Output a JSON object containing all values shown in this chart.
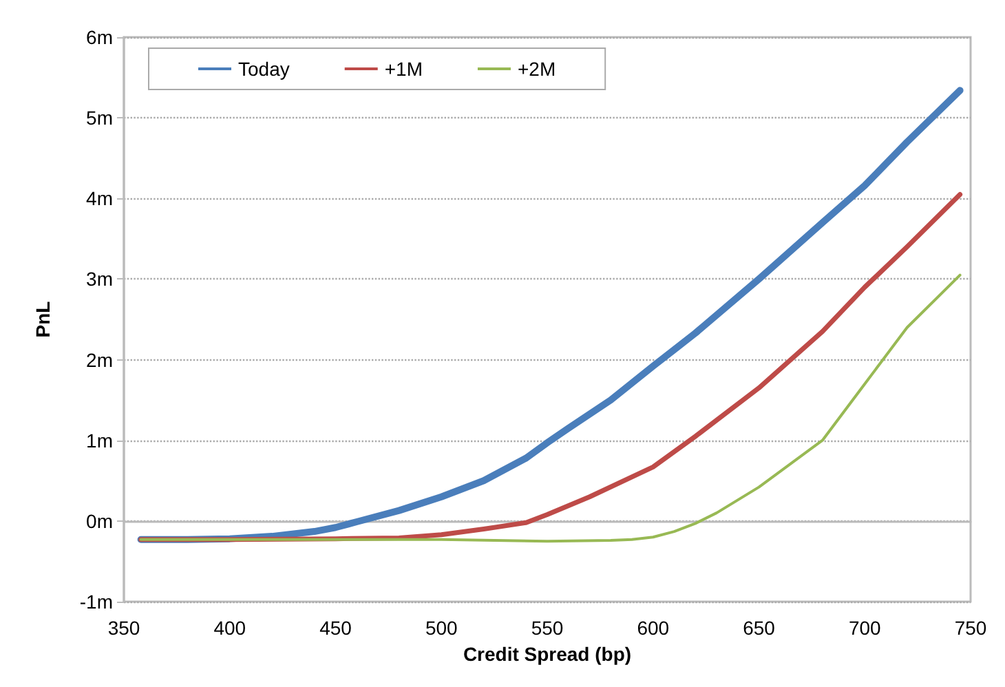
{
  "chart_data": {
    "type": "line",
    "xlabel": "Credit Spread (bp)",
    "ylabel": "PnL",
    "series": [
      {
        "name": "Today",
        "color": "#4a7ebb",
        "x": [
          358,
          380,
          400,
          420,
          440,
          450,
          460,
          480,
          500,
          520,
          540,
          550,
          560,
          580,
          600,
          620,
          650,
          680,
          700,
          720,
          745
        ],
        "values": [
          -0.23,
          -0.23,
          -0.22,
          -0.19,
          -0.13,
          -0.08,
          -0.01,
          0.13,
          0.3,
          0.5,
          0.78,
          0.97,
          1.15,
          1.5,
          1.92,
          2.33,
          3.0,
          3.7,
          4.16,
          4.7,
          5.34
        ]
      },
      {
        "name": "+1M",
        "color": "#be4b48",
        "x": [
          358,
          400,
          450,
          480,
          500,
          520,
          540,
          550,
          570,
          600,
          620,
          650,
          680,
          700,
          720,
          745
        ],
        "values": [
          -0.23,
          -0.23,
          -0.22,
          -0.21,
          -0.17,
          -0.1,
          -0.02,
          0.08,
          0.3,
          0.67,
          1.05,
          1.65,
          2.35,
          2.9,
          3.4,
          4.05
        ]
      },
      {
        "name": "+2M",
        "color": "#98b954",
        "x": [
          358,
          450,
          500,
          550,
          580,
          590,
          600,
          610,
          620,
          630,
          650,
          680,
          700,
          720,
          745
        ],
        "values": [
          -0.23,
          -0.23,
          -0.23,
          -0.25,
          -0.24,
          -0.23,
          -0.2,
          -0.13,
          -0.03,
          0.1,
          0.42,
          1.0,
          1.7,
          2.4,
          3.05
        ]
      }
    ],
    "xlim": [
      350,
      750
    ],
    "xticks": [
      350,
      400,
      450,
      500,
      550,
      600,
      650,
      700,
      750
    ],
    "ylim": [
      -1,
      6
    ],
    "yticks": [
      {
        "value": -1,
        "label": "-1m"
      },
      {
        "value": 0,
        "label": "0m"
      },
      {
        "value": 1,
        "label": "1m"
      },
      {
        "value": 2,
        "label": "2m"
      },
      {
        "value": 3,
        "label": "3m"
      },
      {
        "value": 4,
        "label": "4m"
      },
      {
        "value": 5,
        "label": "5m"
      },
      {
        "value": 6,
        "label": "6m"
      }
    ],
    "grid": "y",
    "legend": "top left",
    "marker": "none",
    "line_style": "solid"
  }
}
